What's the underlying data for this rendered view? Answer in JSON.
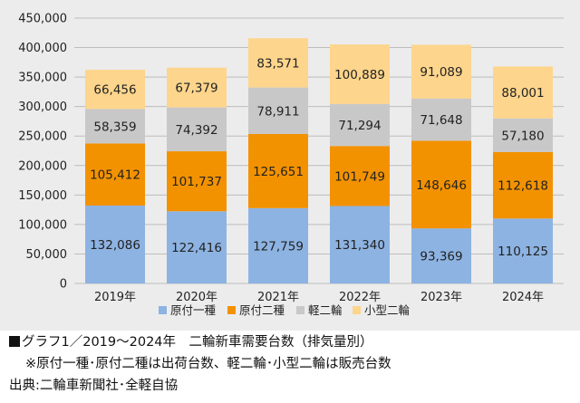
{
  "chart_data": {
    "type": "stacked-bar",
    "categories": [
      "2019年",
      "2020年",
      "2021年",
      "2022年",
      "2023年",
      "2024年"
    ],
    "series": [
      {
        "name": "原付一種",
        "color": "#8db3e2",
        "values": [
          132086,
          122416,
          127759,
          131340,
          93369,
          110125
        ]
      },
      {
        "name": "原付二種",
        "color": "#f39200",
        "values": [
          105412,
          101737,
          125651,
          101749,
          148646,
          112618
        ]
      },
      {
        "name": "軽二輪",
        "color": "#c8c8c8",
        "values": [
          58359,
          74392,
          78911,
          71294,
          71648,
          57180
        ]
      },
      {
        "name": "小型二輪",
        "color": "#fdd58c",
        "values": [
          66456,
          67379,
          83571,
          100889,
          91089,
          88001
        ]
      }
    ],
    "value_labels": [
      [
        "132,086",
        "122,416",
        "127,759",
        "131,340",
        "93,369",
        "110,125"
      ],
      [
        "105,412",
        "101,737",
        "125,651",
        "101,749",
        "148,646",
        "112,618"
      ],
      [
        "58,359",
        "74,392",
        "78,911",
        "71,294",
        "71,648",
        "57,180"
      ],
      [
        "66,456",
        "67,379",
        "83,571",
        "100,889",
        "91,089",
        "88,001"
      ]
    ],
    "yticks": [
      0,
      50000,
      100000,
      150000,
      200000,
      250000,
      300000,
      350000,
      400000,
      450000
    ],
    "ytick_labels": [
      "0",
      "50,000",
      "100,000",
      "150,000",
      "200,000",
      "250,000",
      "300,000",
      "350,000",
      "400,000",
      "450,000"
    ],
    "ylim": [
      0,
      450000
    ],
    "grid": true,
    "legend_position": "bottom"
  },
  "caption": {
    "title": "グラフ1／2019～2024年　二輪新車需要台数（排気量別）",
    "note": "※原付一種･原付二種は出荷台数、軽二輪･小型二輪は販売台数",
    "source": "出典:二輪車新聞社･全軽自協"
  }
}
